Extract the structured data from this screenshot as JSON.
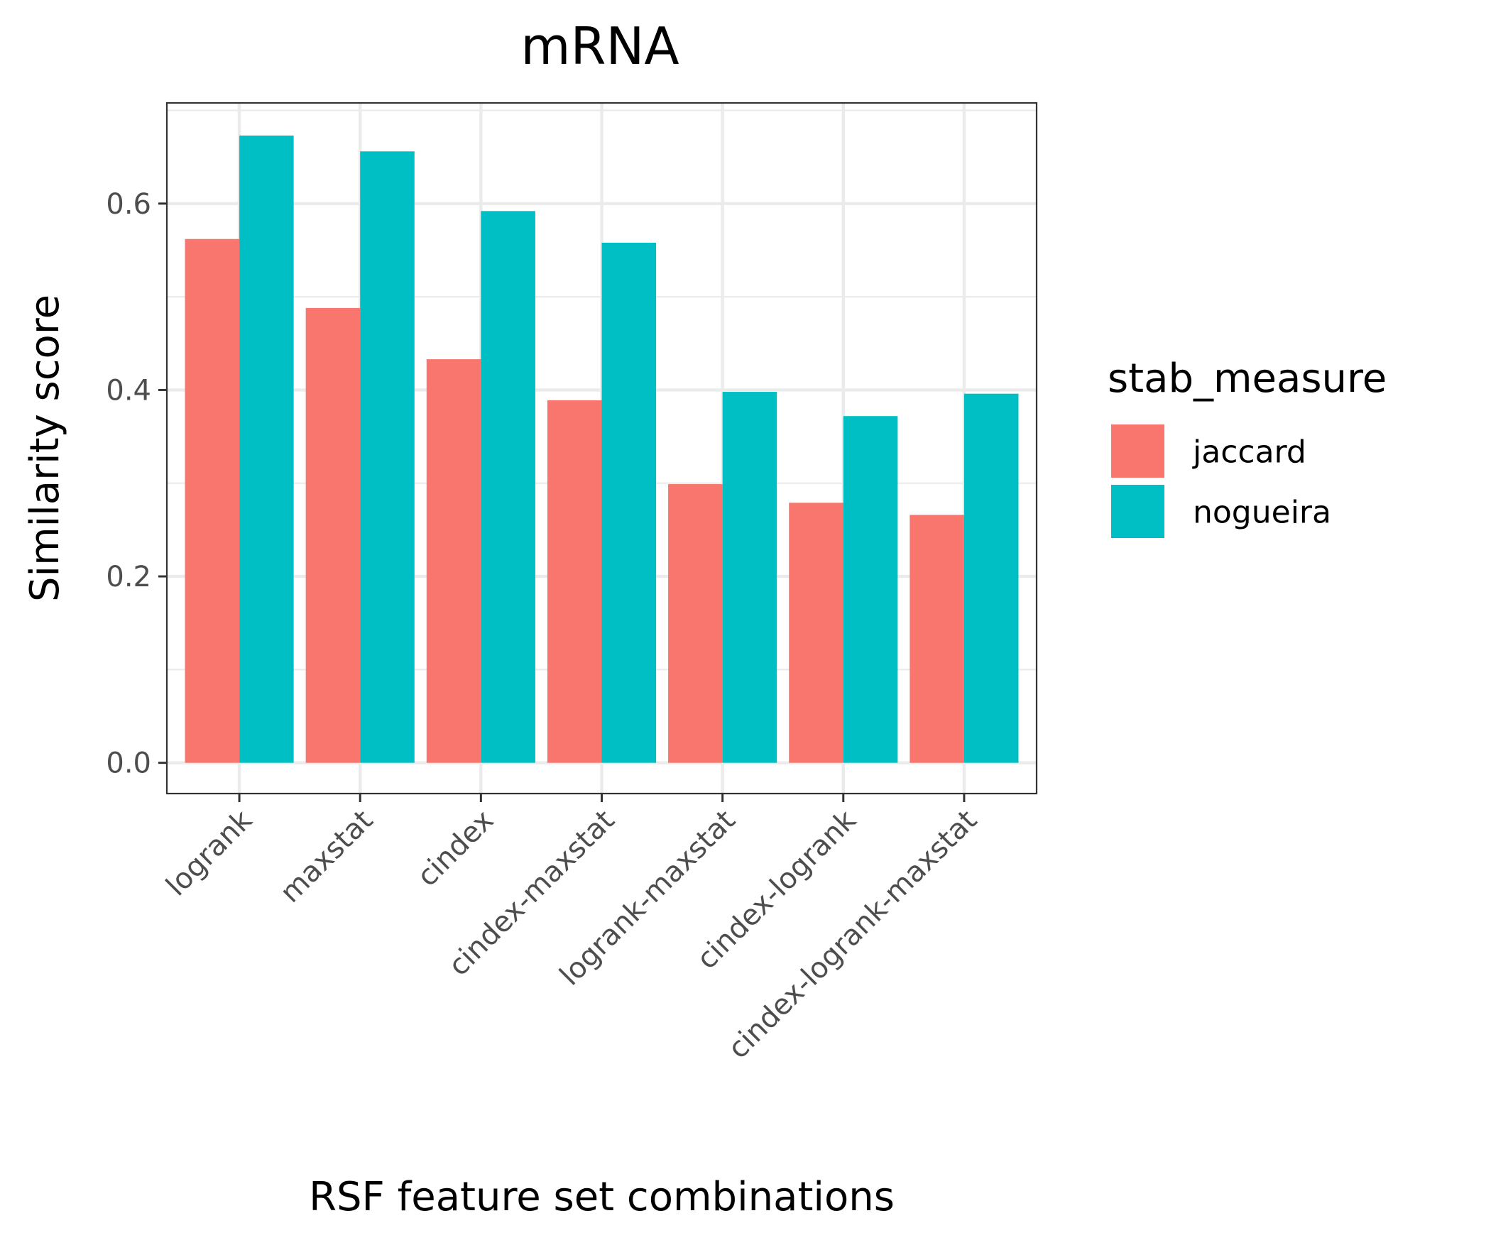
{
  "chart_data": {
    "type": "bar",
    "title": "mRNA",
    "xlabel": "RSF feature set combinations",
    "ylabel": "Similarity score",
    "categories": [
      "logrank",
      "maxstat",
      "cindex",
      "cindex-maxstat",
      "logrank-maxstat",
      "cindex-logrank",
      "cindex-logrank-maxstat"
    ],
    "series": [
      {
        "name": "jaccard",
        "color": "#F8766D",
        "values": [
          0.562,
          0.488,
          0.433,
          0.389,
          0.299,
          0.279,
          0.266
        ]
      },
      {
        "name": "nogueira",
        "color": "#00BFC4",
        "values": [
          0.673,
          0.656,
          0.592,
          0.558,
          0.398,
          0.372,
          0.396
        ]
      }
    ],
    "ylim": [
      -0.033,
      0.708
    ],
    "yticks": [
      0.0,
      0.2,
      0.4,
      0.6
    ],
    "ytick_labels": [
      "0.0",
      "0.2",
      "0.4",
      "0.6"
    ],
    "grid": true,
    "legend": {
      "title": "stab_measure",
      "position": "right"
    }
  }
}
